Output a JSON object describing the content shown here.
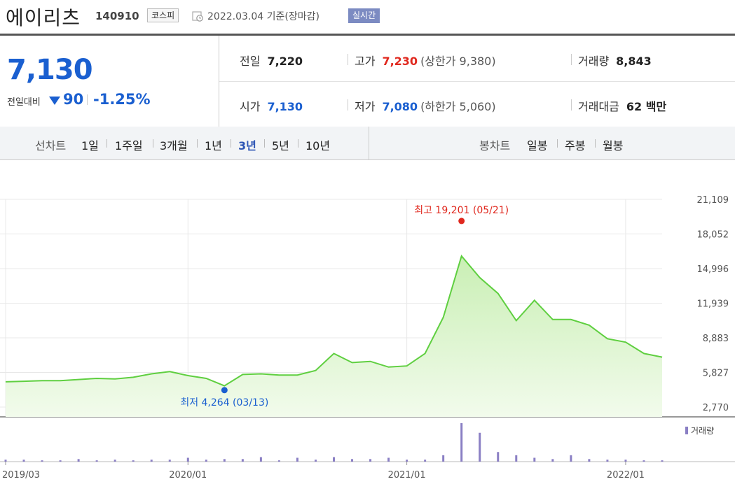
{
  "header": {
    "stock_name": "에이리츠",
    "stock_code": "140910",
    "market": "코스피",
    "date_text": "2022.03.04  기준(장마감)",
    "live_label": "실시간"
  },
  "quote": {
    "current_price": "7,130",
    "change_label": "전일대비",
    "change_value": "90",
    "change_rate": "-1.25%",
    "prev_close_label": "전일",
    "prev_close": "7,220",
    "high_label": "고가",
    "high": "7,230",
    "upper_limit": "(상한가 9,380)",
    "volume_label": "거래량",
    "volume": "8,843",
    "open_label": "시가",
    "open": "7,130",
    "low_label": "저가",
    "low": "7,080",
    "lower_limit": "(하한가 5,060)",
    "amount_label": "거래대금",
    "amount": "62 백만"
  },
  "period_bar": {
    "line_chart_label": "선차트",
    "line_periods": [
      "1일",
      "1주일",
      "3개월",
      "1년",
      "3년",
      "5년",
      "10년"
    ],
    "active_period": "3년",
    "candle_chart_label": "봉차트",
    "candle_periods": [
      "일봉",
      "주봉",
      "월봉"
    ]
  },
  "colors": {
    "up": "#e0281e",
    "down": "#1a5fd0",
    "line": "#5fcf40",
    "fill_top": "#c9efb4",
    "volume": "#8a7fc4",
    "active": "#2e56b5"
  },
  "chart_data": {
    "type": "area",
    "y_ticks": [
      "21,109",
      "18,052",
      "14,996",
      "11,939",
      "8,883",
      "5,827",
      "2,770"
    ],
    "ylim": [
      2770,
      21109
    ],
    "x_ticks": [
      "2019/03",
      "2020/01",
      "2021/01",
      "2022/01"
    ],
    "legend": "거래량",
    "annotations": {
      "max_label": "최고 19,201 (05/21)",
      "min_label": "최저 4,264 (03/13)",
      "max_value": 19201,
      "min_value": 4264
    },
    "x": [
      "2019/03",
      "2019/04",
      "2019/05",
      "2019/06",
      "2019/07",
      "2019/08",
      "2019/09",
      "2019/10",
      "2019/11",
      "2019/12",
      "2020/01",
      "2020/02",
      "2020/03",
      "2020/04",
      "2020/05",
      "2020/06",
      "2020/07",
      "2020/08",
      "2020/09",
      "2020/10",
      "2020/11",
      "2020/12",
      "2021/01",
      "2021/02",
      "2021/03",
      "2021/04",
      "2021/05",
      "2021/06",
      "2021/07",
      "2021/08",
      "2021/09",
      "2021/10",
      "2021/11",
      "2021/12",
      "2022/01",
      "2022/02",
      "2022/03"
    ],
    "series": [
      {
        "values": [
          5000,
          5050,
          5100,
          5100,
          5200,
          5300,
          5250,
          5400,
          5700,
          5900,
          5550,
          5300,
          4650,
          5650,
          5700,
          5600,
          5600,
          6000,
          7500,
          6700,
          6800,
          6300,
          6400,
          7500,
          10700,
          16100,
          14200,
          12800,
          10400,
          12200,
          10500,
          10500,
          10000,
          8800,
          8500,
          7500,
          7180
        ]
      },
      {
        "name": "거래량",
        "values": [
          3,
          3,
          2,
          2,
          4,
          2,
          3,
          2,
          3,
          3,
          6,
          3,
          4,
          4,
          7,
          2,
          6,
          3,
          7,
          4,
          4,
          6,
          3,
          3,
          10,
          60,
          45,
          15,
          10,
          6,
          4,
          10,
          4,
          3,
          3,
          2,
          2
        ]
      }
    ]
  }
}
